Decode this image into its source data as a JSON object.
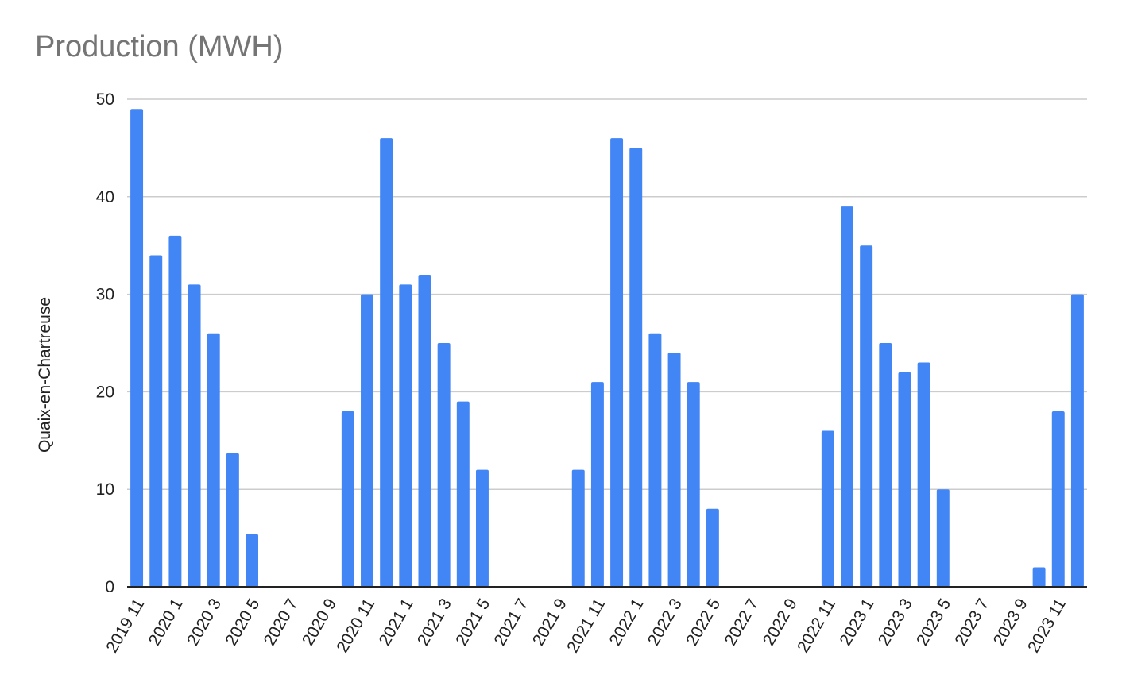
{
  "chart_data": {
    "type": "bar",
    "title": "Production (MWH)",
    "xlabel": "",
    "ylabel": "Quaix-en-Chartreuse",
    "ylim": [
      0,
      50
    ],
    "yticks": [
      "0",
      "10",
      "20",
      "30",
      "40",
      "50"
    ],
    "grid": true,
    "legend": "none",
    "bar_color": "#4285f4",
    "categories": [
      "2019 11",
      "2019 12",
      "2020 1",
      "2020 2",
      "2020 3",
      "2020 4",
      "2020 5",
      "2020 6",
      "2020 7",
      "2020 8",
      "2020 9",
      "2020 10",
      "2020 11",
      "2020 12",
      "2021 1",
      "2021 2",
      "2021 3",
      "2021 4",
      "2021 5",
      "2021 6",
      "2021 7",
      "2021 8",
      "2021 9",
      "2021 10",
      "2021 11",
      "2021 12",
      "2022 1",
      "2022 2",
      "2022 3",
      "2022 4",
      "2022 5",
      "2022 6",
      "2022 7",
      "2022 8",
      "2022 9",
      "2022 10",
      "2022 11",
      "2022 12",
      "2023 1",
      "2023 2",
      "2023 3",
      "2023 4",
      "2023 5",
      "2023 6",
      "2023 7",
      "2023 8",
      "2023 9",
      "2023 10",
      "2023 11",
      "2023 12"
    ],
    "tick_labels": [
      "2019 11",
      "2020 1",
      "2020 3",
      "2020 5",
      "2020 7",
      "2020 9",
      "2020 11",
      "2021 1",
      "2021 3",
      "2021 5",
      "2021 7",
      "2021 9",
      "2021 11",
      "2022 1",
      "2022 3",
      "2022 5",
      "2022 7",
      "2022 9",
      "2022 11",
      "2023 1",
      "2023 3",
      "2023 5",
      "2023 7",
      "2023 9",
      "2023 11"
    ],
    "values": [
      49,
      34,
      36,
      31,
      26,
      13.7,
      5.4,
      0,
      0,
      0,
      0,
      18,
      30,
      46,
      31,
      32,
      25,
      19,
      12,
      0,
      0,
      0,
      0,
      12,
      21,
      46,
      45,
      26,
      24,
      21,
      8,
      0,
      0,
      0,
      0,
      0,
      16,
      39,
      35,
      25,
      22,
      23,
      10,
      0,
      0,
      0,
      0,
      2,
      18,
      30
    ]
  }
}
